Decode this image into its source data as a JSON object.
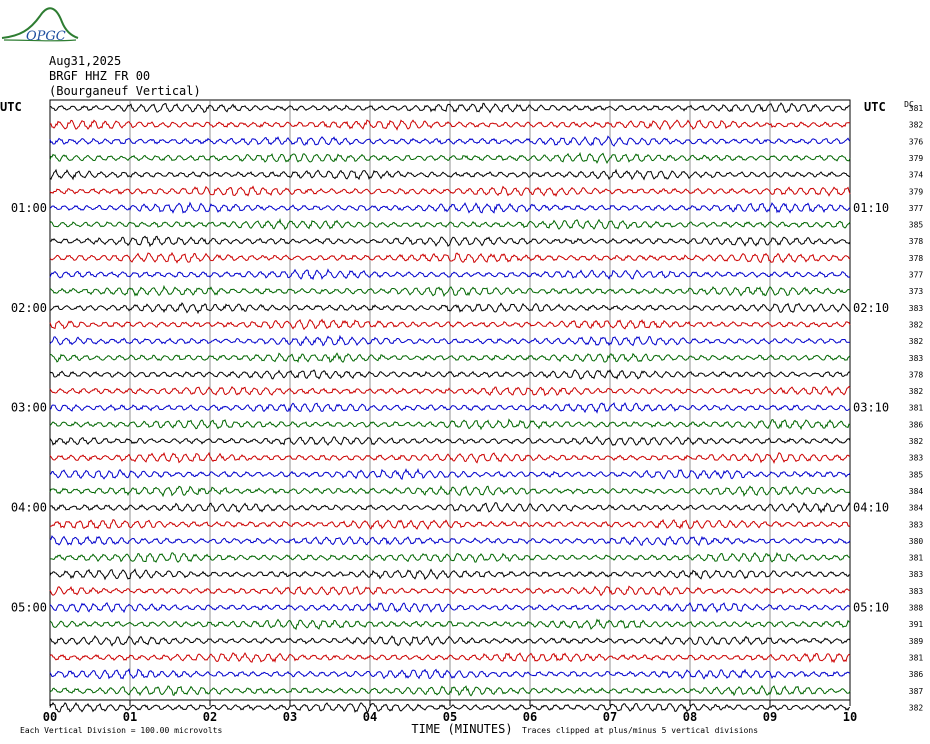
{
  "logo": {
    "text": "OPGC",
    "icon": "opgc-logo-icon",
    "color": "#2e7d32"
  },
  "header": {
    "date": "Aug31,2025",
    "station": "BRGF HHZ FR 00",
    "location": "(Bourganeuf Vertical)"
  },
  "chart_data": {
    "type": "line",
    "title": "",
    "xlabel": "TIME (MINUTES)",
    "ylabel": "",
    "x_ticks": [
      "00",
      "01",
      "02",
      "03",
      "04",
      "05",
      "06",
      "07",
      "08",
      "09",
      "10"
    ],
    "xlim": [
      0,
      10
    ],
    "left_label_header": "UTC",
    "right_label_header": "UTC",
    "dc_header": "DC",
    "left_time_labels": [
      {
        "row": 6,
        "text": "01:00"
      },
      {
        "row": 12,
        "text": "02:00"
      },
      {
        "row": 18,
        "text": "03:00"
      },
      {
        "row": 24,
        "text": "04:00"
      },
      {
        "row": 30,
        "text": "05:00"
      }
    ],
    "right_time_labels": [
      {
        "row": 6,
        "text": "01:10"
      },
      {
        "row": 12,
        "text": "02:10"
      },
      {
        "row": 18,
        "text": "03:10"
      },
      {
        "row": 24,
        "text": "04:10"
      },
      {
        "row": 30,
        "text": "05:10"
      }
    ],
    "dc_values": [
      "381",
      "382",
      "376",
      "379",
      "374",
      "379",
      "377",
      "385",
      "378",
      "378",
      "377",
      "373",
      "383",
      "382",
      "382",
      "383",
      "378",
      "382",
      "381",
      "386",
      "382",
      "383",
      "385",
      "384",
      "384",
      "383",
      "380",
      "381",
      "383",
      "383",
      "388",
      "391",
      "389",
      "381",
      "386",
      "387",
      "382"
    ],
    "trace_colors": [
      "#000000",
      "#cc0000",
      "#0000cc",
      "#006600"
    ],
    "footer_left": "Each Vertical Division =  100.00 microvolts",
    "footer_right": "Traces clipped at plus/minus 5 vertical divisions"
  }
}
